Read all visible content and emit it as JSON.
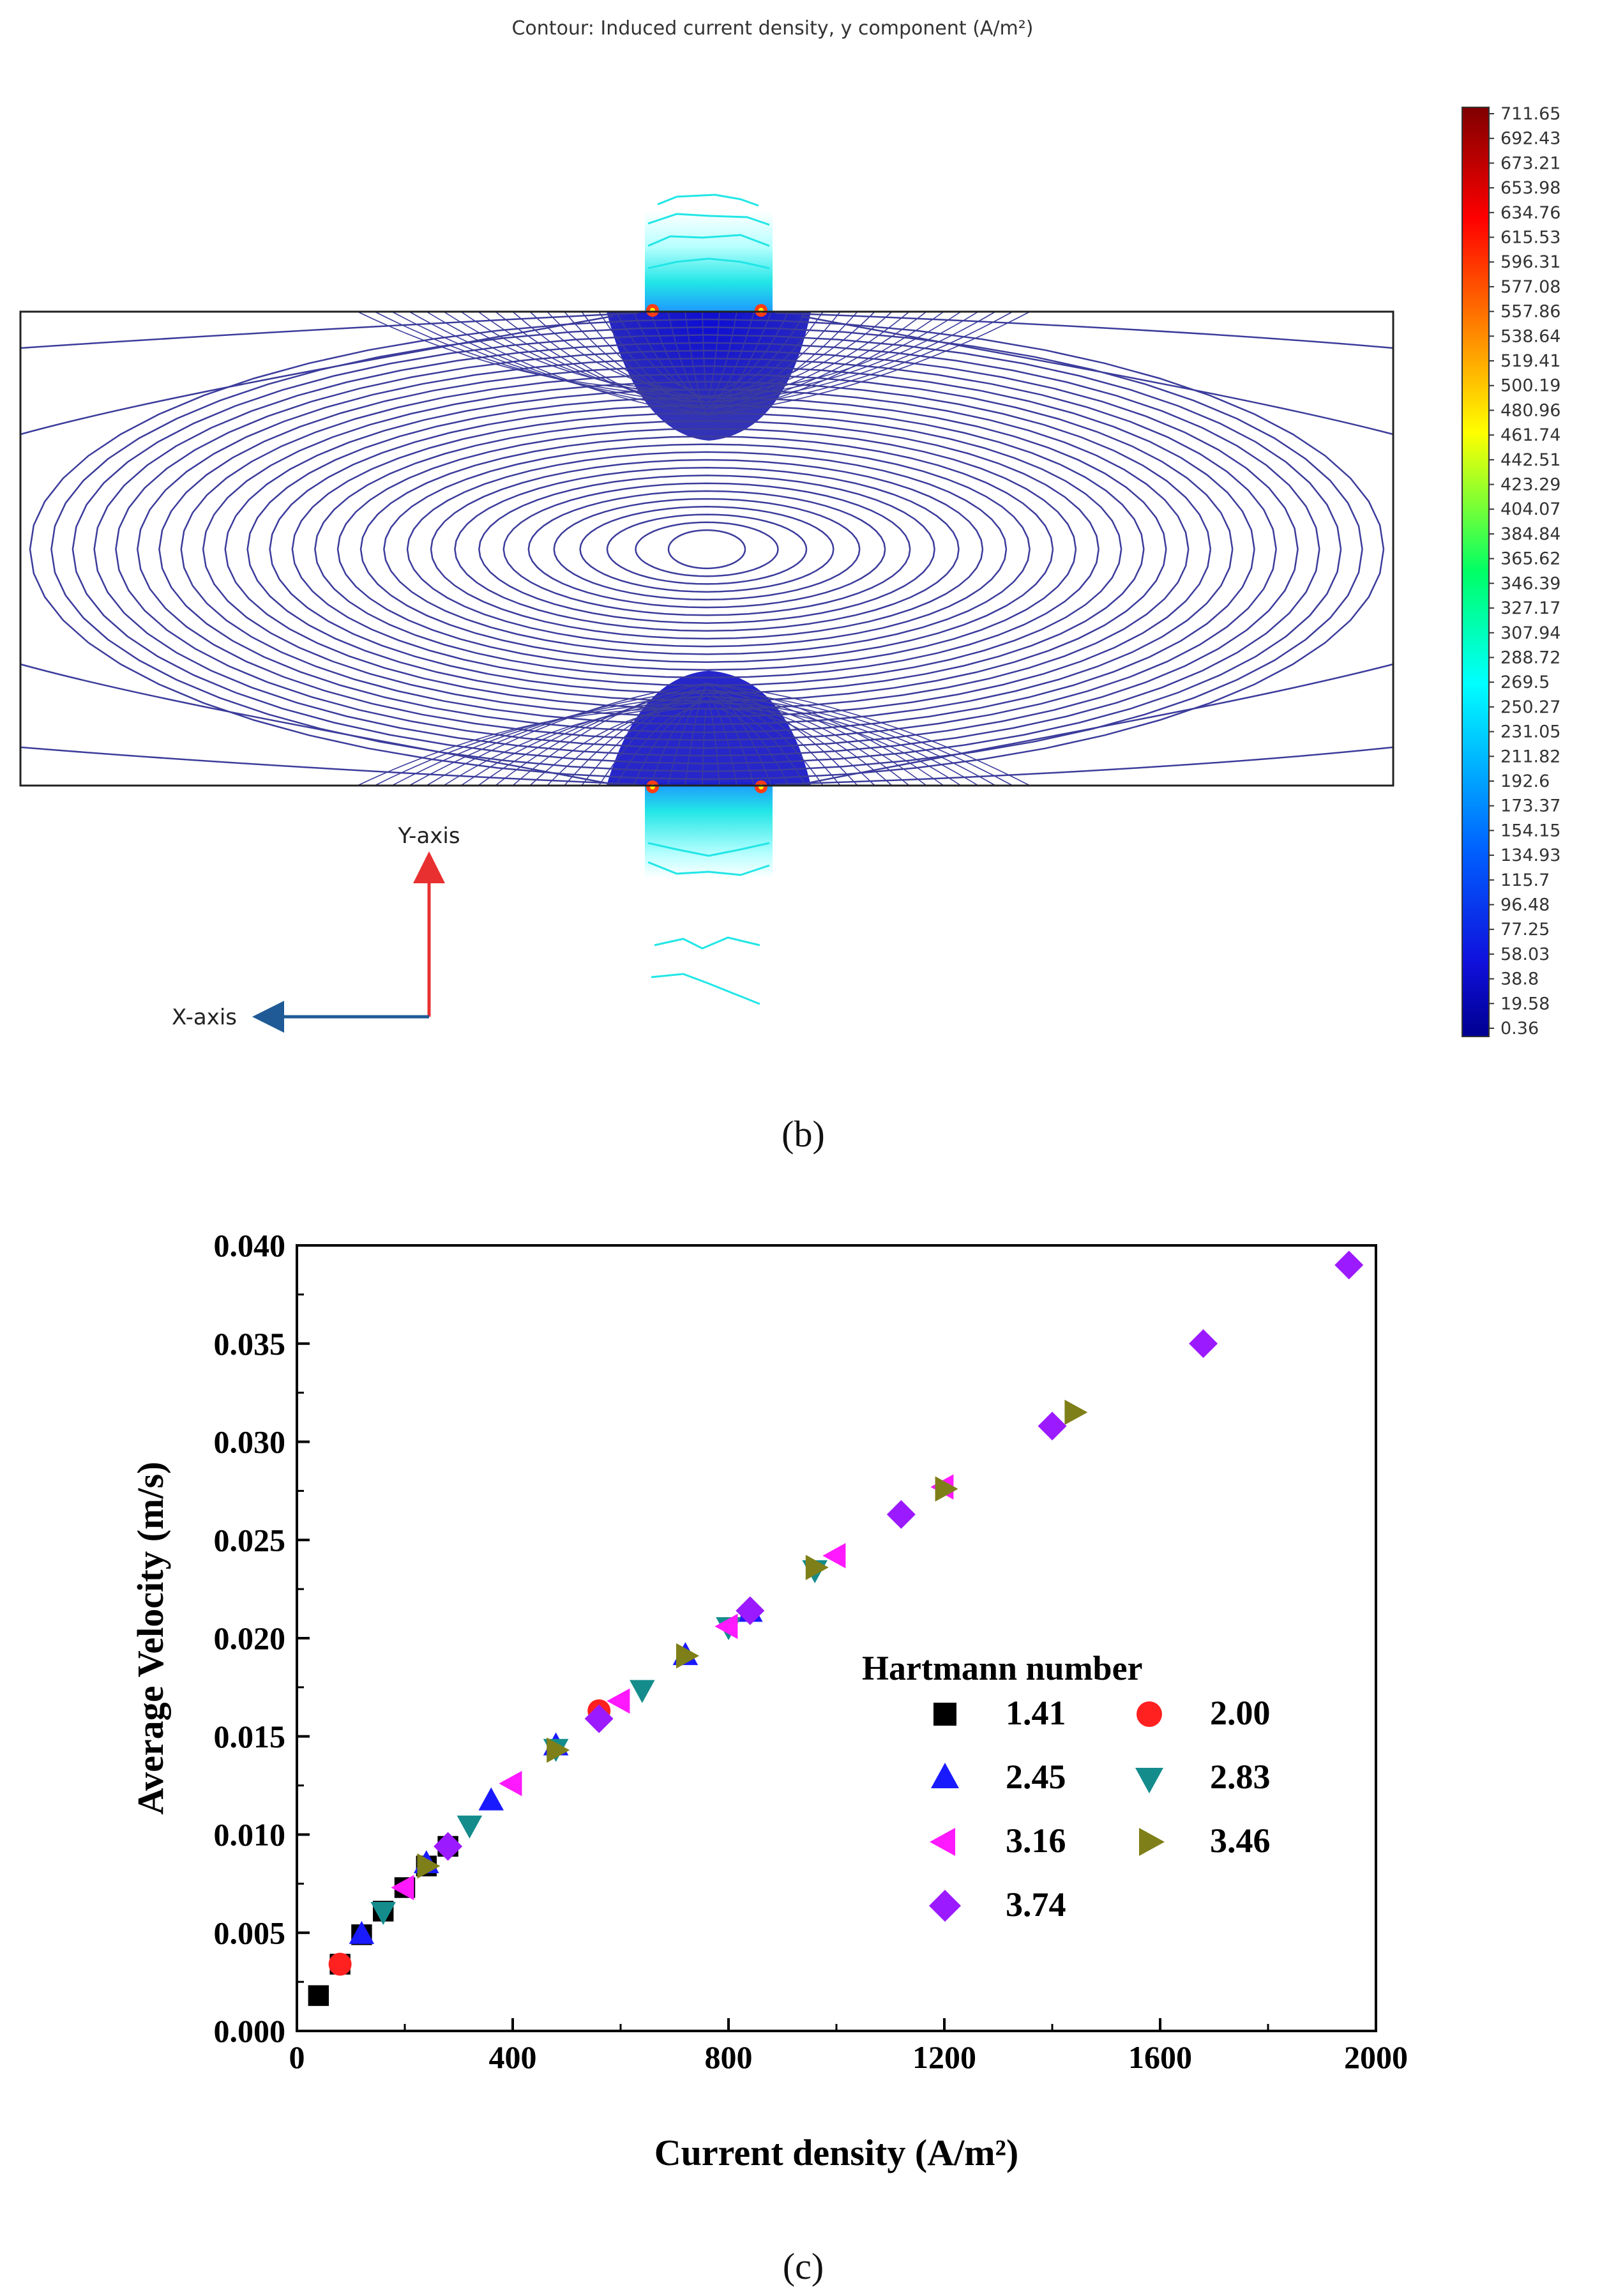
{
  "panel_b": {
    "title": "Contour: Induced current density, y component (A/m²)",
    "caption": "(b)",
    "y_axis_label": "Y-axis",
    "x_axis_label": "X-axis",
    "colorbar_ticks": [
      "711.65",
      "692.43",
      "673.21",
      "653.98",
      "634.76",
      "615.53",
      "596.31",
      "577.08",
      "557.86",
      "538.64",
      "519.41",
      "500.19",
      "480.96",
      "461.74",
      "442.51",
      "423.29",
      "404.07",
      "384.84",
      "365.62",
      "346.39",
      "327.17",
      "307.94",
      "288.72",
      "269.5",
      "250.27",
      "231.05",
      "211.82",
      "192.6",
      "173.37",
      "154.15",
      "134.93",
      "115.7",
      "96.48",
      "77.25",
      "58.03",
      "38.8",
      "19.58",
      "0.36"
    ],
    "colors": {
      "line": "#3c3c9c",
      "core": "#1414c8",
      "cyan": "#22e6e6",
      "hot": "#ff3c14",
      "frame": "#222222",
      "y_arrow": "#e83030",
      "x_arrow": "#1f5a96"
    }
  },
  "chart_data": {
    "type": "scatter",
    "xlabel": "Current density (A/m²)",
    "ylabel": "Average Velocity (m/s)",
    "xlim": [
      0,
      2000
    ],
    "ylim": [
      0,
      0.04
    ],
    "xticks": [
      "0",
      "400",
      "800",
      "1200",
      "1600",
      "2000"
    ],
    "yticks": [
      "0.000",
      "0.005",
      "0.010",
      "0.015",
      "0.020",
      "0.025",
      "0.030",
      "0.035",
      "0.040"
    ],
    "legend_title": "Hartmann number",
    "caption": "(c)",
    "series": [
      {
        "name": "1.41",
        "marker": "square",
        "color": "#000000",
        "points": [
          [
            40,
            0.0018
          ],
          [
            80,
            0.0034
          ],
          [
            120,
            0.0049
          ],
          [
            160,
            0.0061
          ],
          [
            200,
            0.0073
          ],
          [
            240,
            0.0084
          ],
          [
            280,
            0.0094
          ]
        ]
      },
      {
        "name": "2.00",
        "marker": "circle",
        "color": "#ff2020",
        "points": [
          [
            80,
            0.0034
          ],
          [
            560,
            0.0163
          ]
        ]
      },
      {
        "name": "2.45",
        "marker": "triangle-up",
        "color": "#1a1aff",
        "points": [
          [
            120,
            0.0049
          ],
          [
            240,
            0.0085
          ],
          [
            360,
            0.0117
          ],
          [
            480,
            0.0145
          ],
          [
            720,
            0.0191
          ],
          [
            840,
            0.0213
          ]
        ]
      },
      {
        "name": "2.83",
        "marker": "triangle-down",
        "color": "#148c8c",
        "points": [
          [
            160,
            0.0061
          ],
          [
            320,
            0.0105
          ],
          [
            480,
            0.0144
          ],
          [
            640,
            0.0174
          ],
          [
            800,
            0.0206
          ],
          [
            960,
            0.0235
          ]
        ]
      },
      {
        "name": "3.16",
        "marker": "triangle-left",
        "color": "#ff19ff",
        "points": [
          [
            200,
            0.0073
          ],
          [
            400,
            0.0126
          ],
          [
            600,
            0.0168
          ],
          [
            800,
            0.0206
          ],
          [
            1000,
            0.0242
          ],
          [
            1200,
            0.0277
          ]
        ]
      },
      {
        "name": "3.46",
        "marker": "triangle-right",
        "color": "#7f7f19",
        "points": [
          [
            240,
            0.0084
          ],
          [
            480,
            0.0143
          ],
          [
            720,
            0.0191
          ],
          [
            960,
            0.0236
          ],
          [
            1200,
            0.0276
          ],
          [
            1440,
            0.0315
          ]
        ]
      },
      {
        "name": "3.74",
        "marker": "diamond",
        "color": "#9c1aff",
        "points": [
          [
            280,
            0.0094
          ],
          [
            560,
            0.0159
          ],
          [
            840,
            0.0214
          ],
          [
            1120,
            0.0263
          ],
          [
            1400,
            0.0308
          ],
          [
            1680,
            0.035
          ],
          [
            1950,
            0.039
          ]
        ]
      }
    ]
  }
}
